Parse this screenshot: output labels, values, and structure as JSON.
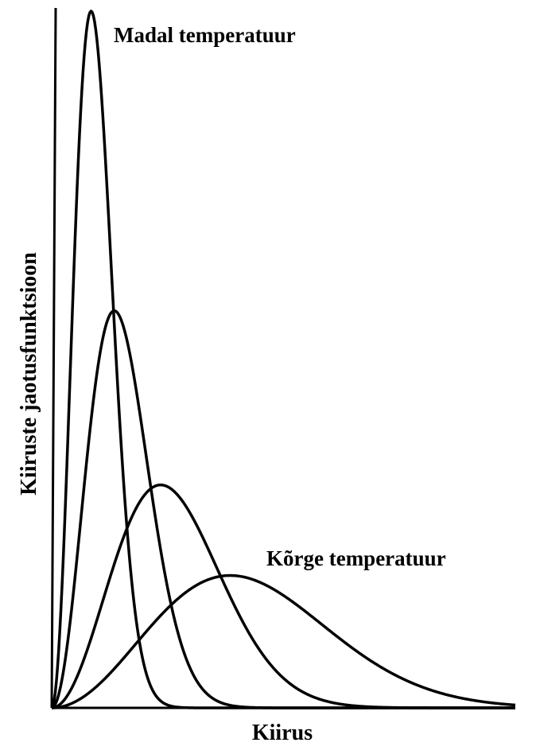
{
  "chart_data": {
    "type": "line",
    "title": "",
    "xlabel": "Kiirus",
    "ylabel": "Kiiruste jaotusfunktsioon",
    "grid": false,
    "legend": "none",
    "annotations": {
      "low": "Madal temperatuur",
      "high": "Kõrge temperatuur"
    },
    "series": [
      {
        "peak_x": 0.085,
        "peak_y": 1.0
      },
      {
        "peak_x": 0.135,
        "peak_y": 0.57
      },
      {
        "peak_x": 0.235,
        "peak_y": 0.32
      },
      {
        "peak_x": 0.385,
        "peak_y": 0.19
      }
    ],
    "xlim": [
      0,
      1
    ],
    "ylim": [
      0,
      1
    ]
  },
  "colors": {
    "line": "#000000",
    "background": "#ffffff"
  }
}
